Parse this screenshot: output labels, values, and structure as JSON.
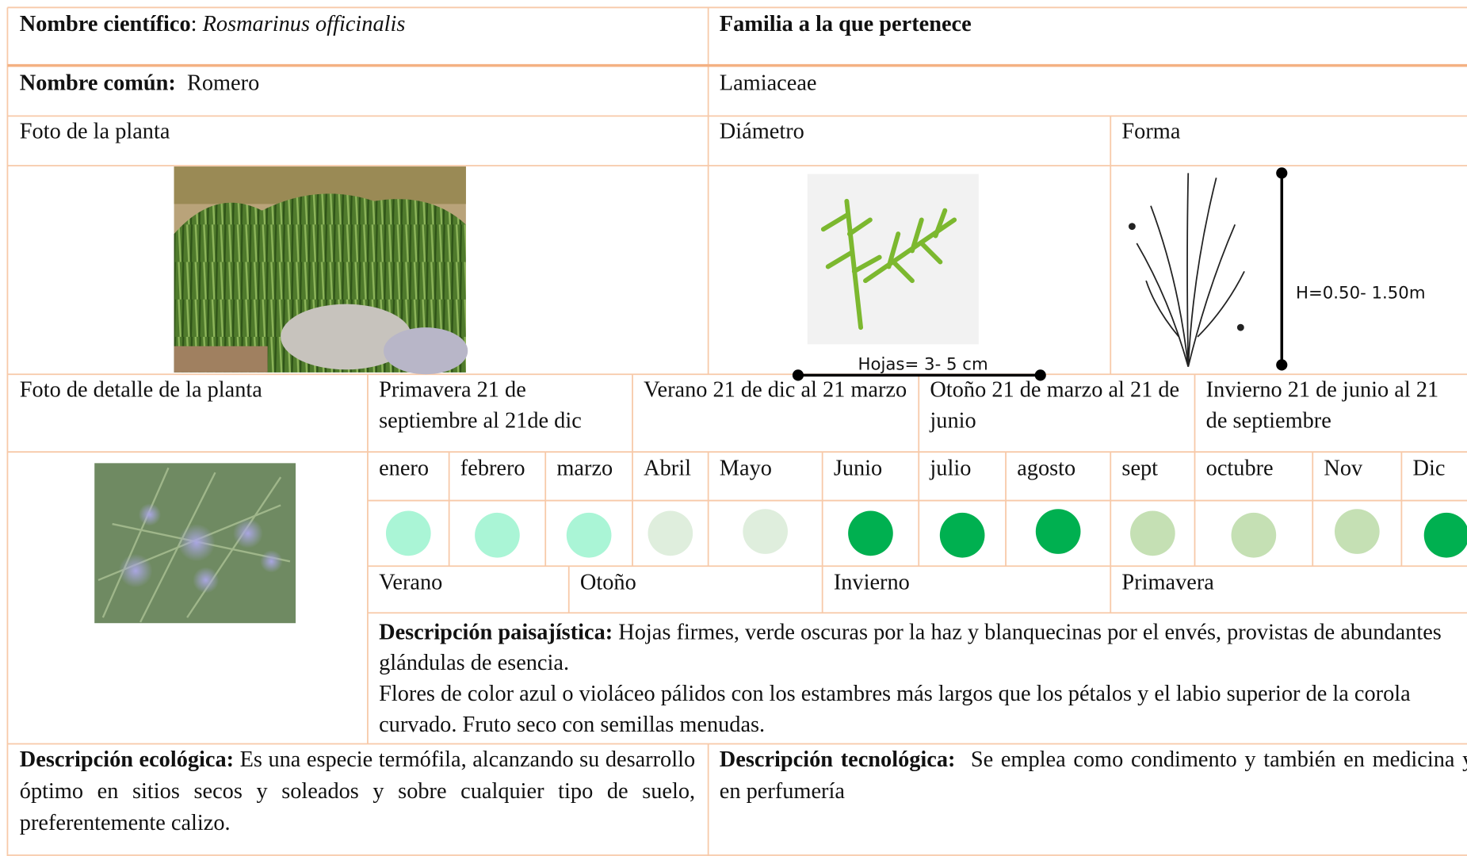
{
  "scientific_name": {
    "label": "Nombre científico",
    "separator": ":",
    "value": "Rosmarinus officinalis"
  },
  "common_name": {
    "label": "Nombre común:",
    "value": "Romero"
  },
  "family": {
    "label": "Familia a la que pertenece",
    "value": "Lamiaceae"
  },
  "photo_label": "Foto de la planta",
  "diameter": {
    "label": "Diámetro",
    "measure": "Hojas= 3- 5 cm"
  },
  "shape": {
    "label": "Forma",
    "measure": "H=0.50- 1.50m"
  },
  "detail_photo_label": "Foto de detalle de la planta",
  "season_headers": [
    "Primavera 21 de septiembre al 21de dic",
    "Verano 21 de dic al 21 marzo",
    "Otoño 21 de marzo al 21 de junio",
    "Invierno 21 de junio al 21 de septiembre"
  ],
  "months": [
    {
      "name": "enero",
      "color": "#aaf5d6"
    },
    {
      "name": "febrero",
      "color": "#aaf5d6"
    },
    {
      "name": "marzo",
      "color": "#aaf5d6"
    },
    {
      "name": "Abril",
      "color": "#dfeedd"
    },
    {
      "name": "Mayo",
      "color": "#dfeedd"
    },
    {
      "name": "Junio",
      "color": "#00b050"
    },
    {
      "name": "julio",
      "color": "#00b050"
    },
    {
      "name": "agosto",
      "color": "#00b050"
    },
    {
      "name": "sept",
      "color": "#c5e0b4"
    },
    {
      "name": "octubre",
      "color": "#c5e0b4"
    },
    {
      "name": "Nov",
      "color": "#c5e0b4"
    },
    {
      "name": "Dic",
      "color": "#00b050"
    }
  ],
  "season_names": [
    "Verano",
    "Otoño",
    "Invierno",
    "Primavera"
  ],
  "landscape": {
    "label": "Descripción paisajística:",
    "paragraphs": [
      "Hojas firmes, verde oscuras por la haz y blanquecinas por el envés, provistas de abundantes glándulas de esencia.",
      "Flores de color azul o violáceo pálidos con los estambres más largos que los pétalos y el labio superior de la corola curvado. Fruto seco con semillas menudas."
    ]
  },
  "ecological": {
    "label": "Descripción ecológica:",
    "text": "Es una especie termófila, alcanzando su desarrollo óptimo en sitios secos y soleados y sobre cualquier tipo de suelo, preferentemente calizo."
  },
  "technological": {
    "label": "Descripción tecnológica:",
    "text": "Se emplea como condimento y también en medicina y en perfumería"
  }
}
